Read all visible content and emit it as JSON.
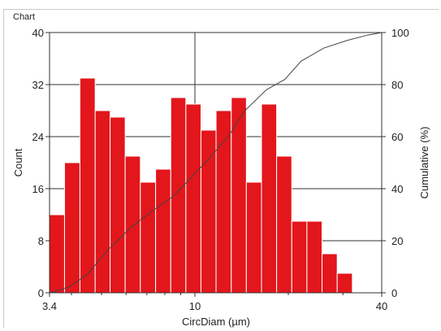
{
  "window": {
    "group_label": "Chart"
  },
  "chart_data": {
    "type": "bar",
    "x_scale": "log",
    "xlabel": "CircDiam (µm)",
    "ylabel": "Count",
    "y2label": "Cumulative (%)",
    "xlim": [
      3.4,
      40
    ],
    "ylim": [
      0,
      40
    ],
    "y2lim": [
      0,
      100
    ],
    "x_ticks": [
      "3.4",
      "10",
      "40"
    ],
    "y_ticks": [
      "0",
      "8",
      "16",
      "24",
      "32",
      "40"
    ],
    "y2_ticks": [
      "0",
      "20",
      "40",
      "60",
      "80",
      "100"
    ],
    "grid": true,
    "bar_color": "#e3161b",
    "bins": [
      {
        "x0": 3.4,
        "x1": 3.8,
        "count": 12
      },
      {
        "x0": 3.8,
        "x1": 4.26,
        "count": 20
      },
      {
        "x0": 4.26,
        "x1": 4.77,
        "count": 33
      },
      {
        "x0": 4.77,
        "x1": 5.33,
        "count": 28
      },
      {
        "x0": 5.33,
        "x1": 5.96,
        "count": 27
      },
      {
        "x0": 5.96,
        "x1": 6.67,
        "count": 21
      },
      {
        "x0": 6.67,
        "x1": 7.47,
        "count": 17
      },
      {
        "x0": 7.47,
        "x1": 8.36,
        "count": 19
      },
      {
        "x0": 8.36,
        "x1": 9.35,
        "count": 30
      },
      {
        "x0": 9.35,
        "x1": 10.46,
        "count": 29
      },
      {
        "x0": 10.46,
        "x1": 11.7,
        "count": 25
      },
      {
        "x0": 11.7,
        "x1": 13.1,
        "count": 28
      },
      {
        "x0": 13.1,
        "x1": 14.65,
        "count": 30
      },
      {
        "x0": 14.65,
        "x1": 16.39,
        "count": 17
      },
      {
        "x0": 16.39,
        "x1": 18.34,
        "count": 29
      },
      {
        "x0": 18.34,
        "x1": 20.52,
        "count": 21
      },
      {
        "x0": 20.52,
        "x1": 22.96,
        "count": 11
      },
      {
        "x0": 22.96,
        "x1": 25.69,
        "count": 11
      },
      {
        "x0": 25.69,
        "x1": 28.75,
        "count": 6
      },
      {
        "x0": 28.75,
        "x1": 32.17,
        "count": 3
      }
    ],
    "cumulative": {
      "x": [
        3.4,
        3.9,
        4.5,
        5.2,
        6.2,
        7.2,
        8.5,
        9.5,
        11,
        12.8,
        14.5,
        17,
        19.5,
        22,
        26,
        31,
        36,
        40
      ],
      "y": [
        0,
        2,
        7,
        16,
        25,
        31,
        37,
        43,
        51,
        60,
        70,
        78,
        82,
        89,
        94,
        97,
        99,
        100
      ]
    }
  }
}
